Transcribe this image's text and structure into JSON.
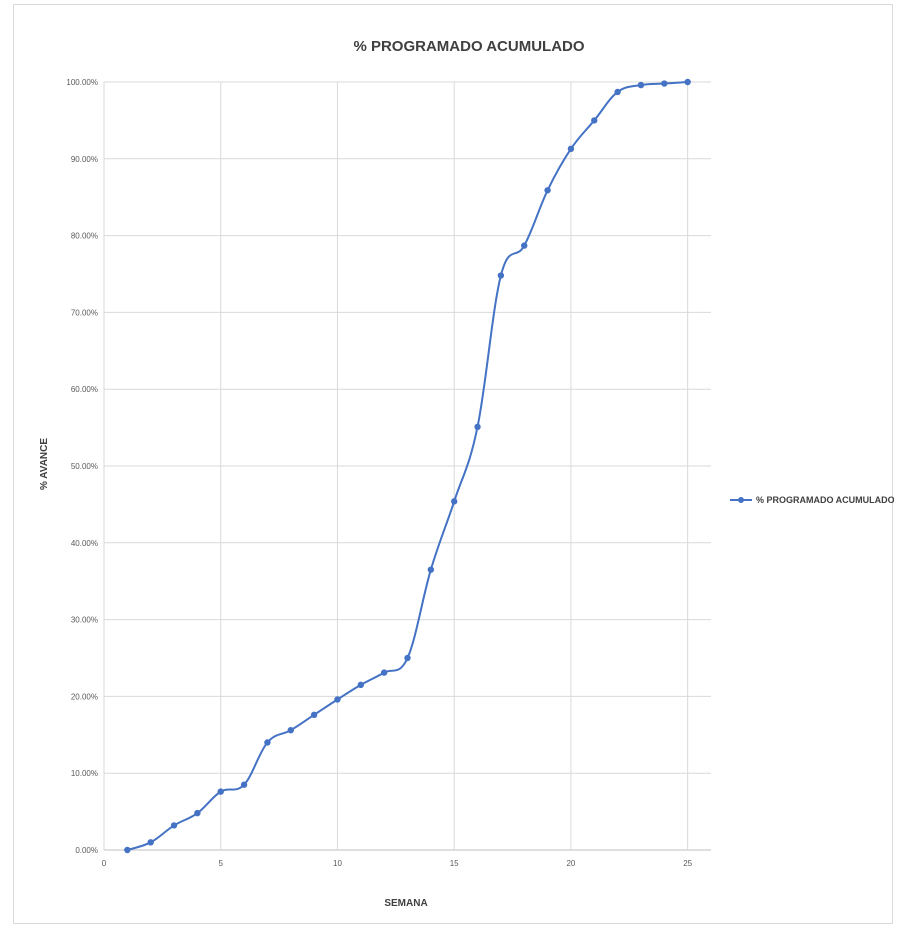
{
  "chart_data": {
    "type": "line",
    "title": "% PROGRAMADO ACUMULADO",
    "xlabel": "SEMANA",
    "ylabel": "% AVANCE",
    "xlim": [
      0,
      26
    ],
    "ylim": [
      0,
      100
    ],
    "x_ticks": [
      0,
      5,
      10,
      15,
      20,
      25
    ],
    "y_ticks": [
      "0.00%",
      "10.00%",
      "20.00%",
      "30.00%",
      "40.00%",
      "50.00%",
      "60.00%",
      "70.00%",
      "80.00%",
      "90.00%",
      "100.00%"
    ],
    "grid": true,
    "legend_position": "right",
    "color": "#4472c4",
    "series": [
      {
        "name": "% PROGRAMADO ACUMULADO",
        "x": [
          1,
          2,
          3,
          4,
          5,
          6,
          7,
          8,
          9,
          10,
          11,
          12,
          13,
          14,
          15,
          16,
          17,
          18,
          19,
          20,
          21,
          22,
          23,
          24,
          25
        ],
        "y": [
          0.0,
          1.0,
          3.2,
          4.8,
          7.6,
          8.5,
          14.0,
          15.6,
          17.6,
          19.6,
          21.5,
          23.1,
          25.0,
          36.5,
          45.4,
          55.1,
          74.8,
          78.7,
          85.9,
          91.3,
          95.0,
          98.7,
          99.6,
          99.8,
          100.0
        ]
      }
    ]
  }
}
